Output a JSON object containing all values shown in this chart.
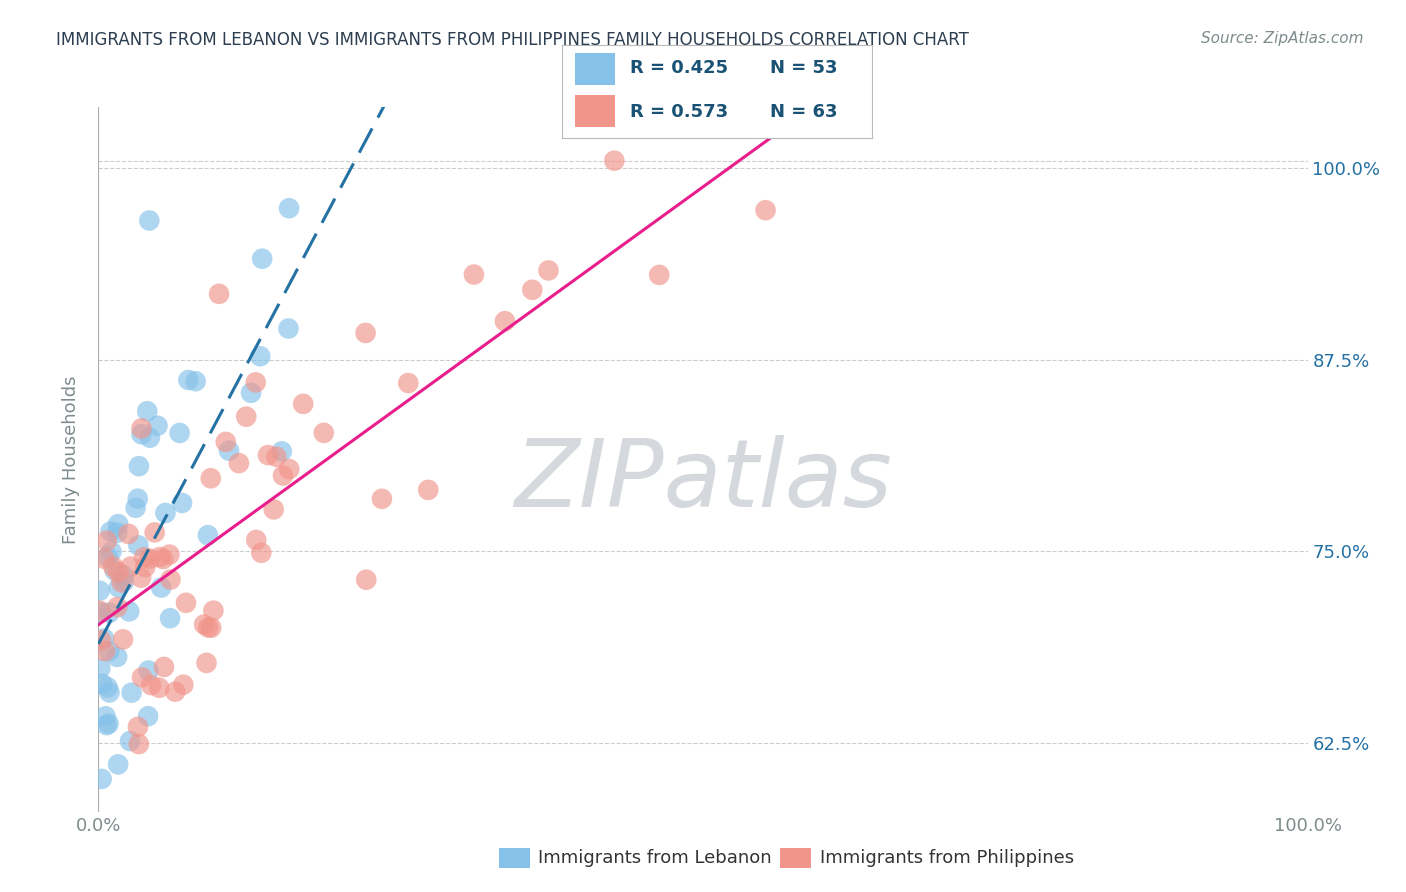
{
  "title": "IMMIGRANTS FROM LEBANON VS IMMIGRANTS FROM PHILIPPINES FAMILY HOUSEHOLDS CORRELATION CHART",
  "source": "Source: ZipAtlas.com",
  "ylabel": "Family Households",
  "yticks_labels": [
    "62.5%",
    "75.0%",
    "87.5%",
    "100.0%"
  ],
  "yticks_values": [
    0.625,
    0.75,
    0.875,
    1.0
  ],
  "xticks_labels": [
    "0.0%",
    "100.0%"
  ],
  "legend_r1": "R = 0.425",
  "legend_n1": "N = 53",
  "legend_r2": "R = 0.573",
  "legend_n2": "N = 63",
  "color_lebanon": "#85C1E9",
  "color_philippines": "#F1948A",
  "color_lebanon_line": "#2471A3",
  "color_philippines_line": "#E91E8C",
  "color_r_value": "#1A5276",
  "watermark_text": "ZIPatlas",
  "watermark_color": "#D5D8DC",
  "legend_bottom_labels": [
    "Immigrants from Lebanon",
    "Immigrants from Philippines"
  ],
  "bg_color": "#FFFFFF",
  "grid_color": "#CCCCCC",
  "title_color": "#2C3E50",
  "source_color": "#7F8C8D",
  "axis_color": "#7F8C8D",
  "right_axis_color": "#2471A3",
  "seed": 42,
  "n_lebanon": 53,
  "n_philippines": 63
}
